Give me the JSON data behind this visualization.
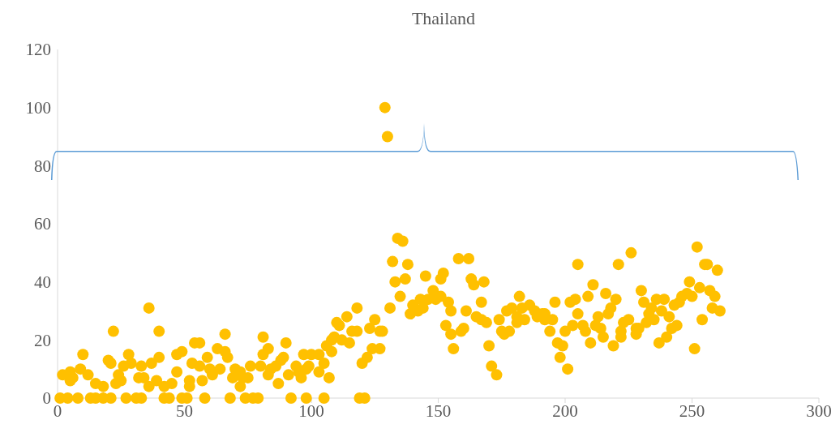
{
  "chart_data": {
    "type": "scatter",
    "title": "Thailand",
    "color": "#ffc000",
    "marker": "circle",
    "grid": false,
    "x": [
      1,
      4,
      8,
      13,
      15,
      18,
      21,
      27,
      31,
      33,
      42,
      44,
      49,
      36,
      22,
      40,
      10,
      28,
      47,
      49,
      20,
      21,
      40,
      37,
      26,
      29,
      33,
      9,
      2,
      5,
      6,
      5,
      12,
      24,
      25,
      23,
      32,
      34,
      36,
      39,
      15,
      18,
      42,
      45,
      47,
      53,
      52,
      52,
      54,
      51,
      58,
      68,
      74,
      77,
      79,
      92,
      98,
      105,
      56,
      66,
      81,
      90,
      56,
      59,
      63,
      66,
      67,
      60,
      61,
      64,
      57,
      70,
      69,
      72,
      73,
      75,
      72,
      76,
      80,
      83,
      81,
      83,
      84,
      86,
      88,
      89,
      87,
      91,
      94,
      95,
      97,
      100,
      103,
      96,
      98,
      99,
      103,
      105,
      106,
      108,
      107,
      129,
      130,
      118,
      114,
      110,
      111,
      116,
      118,
      109,
      112,
      115,
      108,
      125,
      123,
      127,
      128,
      124,
      127,
      122,
      120,
      119,
      121,
      134,
      136,
      132,
      138,
      133,
      137,
      135,
      131,
      145,
      152,
      151,
      139,
      140,
      142,
      143,
      144,
      146,
      148,
      149,
      151,
      154,
      155,
      153,
      155,
      156,
      158,
      162,
      163,
      164,
      168,
      182,
      161,
      167,
      165,
      167,
      169,
      159,
      160,
      170,
      171,
      173,
      174,
      175,
      176,
      178,
      177,
      179,
      181,
      181,
      183,
      184,
      186,
      188,
      189,
      191,
      192,
      192,
      194,
      195,
      196,
      197,
      199,
      198,
      201,
      200,
      203,
      202,
      204,
      205,
      205,
      221,
      226,
      252,
      255,
      256,
      260,
      211,
      216,
      209,
      220,
      218,
      217,
      213,
      230,
      231,
      236,
      239,
      233,
      234,
      238,
      241,
      243,
      245,
      246,
      248,
      250,
      249,
      253,
      257,
      259,
      258,
      261,
      254,
      251,
      207,
      208,
      212,
      214,
      215,
      210,
      219,
      223,
      225,
      222,
      222,
      228,
      228,
      229,
      232,
      235,
      237,
      240,
      242,
      244
    ],
    "values": [
      0,
      0,
      0,
      0,
      0,
      0,
      0,
      0,
      0,
      0,
      0,
      0,
      0,
      31,
      23,
      23,
      15,
      15,
      15,
      16,
      13,
      12,
      14,
      12,
      11,
      12,
      11,
      10,
      8,
      9,
      7,
      6,
      8,
      8,
      6,
      5,
      7,
      7,
      4,
      6,
      5,
      4,
      4,
      5,
      9,
      12,
      6,
      4,
      19,
      0,
      0,
      0,
      0,
      0,
      0,
      0,
      0,
      0,
      19,
      22,
      21,
      19,
      11,
      14,
      17,
      16,
      14,
      10,
      8,
      10,
      6,
      10,
      7,
      9,
      7,
      7,
      4,
      11,
      11,
      17,
      15,
      8,
      10,
      11,
      13,
      14,
      5,
      8,
      11,
      9,
      15,
      15,
      15,
      7,
      10,
      11,
      9,
      12,
      18,
      20,
      7,
      100,
      90,
      31,
      28,
      26,
      25,
      23,
      23,
      21,
      20,
      19,
      16,
      27,
      24,
      23,
      23,
      17,
      17,
      14,
      12,
      0,
      0,
      55,
      54,
      47,
      46,
      40,
      41,
      35,
      31,
      42,
      43,
      41,
      29,
      32,
      30,
      34,
      31,
      34,
      37,
      34,
      35,
      33,
      30,
      25,
      22,
      17,
      48,
      48,
      41,
      39,
      40,
      35,
      30,
      33,
      28,
      27,
      26,
      23,
      24,
      18,
      11,
      8,
      27,
      23,
      22,
      23,
      30,
      31,
      28,
      26,
      31,
      27,
      32,
      30,
      28,
      29,
      29,
      27,
      23,
      27,
      33,
      19,
      18,
      14,
      10,
      23,
      25,
      33,
      34,
      29,
      46,
      46,
      50,
      52,
      46,
      46,
      44,
      39,
      36,
      35,
      34,
      31,
      29,
      28,
      37,
      33,
      34,
      34,
      29,
      31,
      30,
      28,
      32,
      33,
      35,
      36,
      35,
      40,
      38,
      37,
      35,
      31,
      30,
      27,
      17,
      25,
      23,
      25,
      24,
      21,
      19,
      18,
      26,
      27,
      23,
      21,
      24,
      22,
      24,
      26,
      27,
      19,
      21,
      24,
      25
    ],
    "xlim": [
      0,
      300
    ],
    "xticks": [
      0,
      50,
      100,
      150,
      200,
      250,
      300
    ],
    "ylim": [
      0,
      120
    ],
    "yticks": [
      0,
      20,
      40,
      60,
      80,
      100,
      120
    ]
  }
}
